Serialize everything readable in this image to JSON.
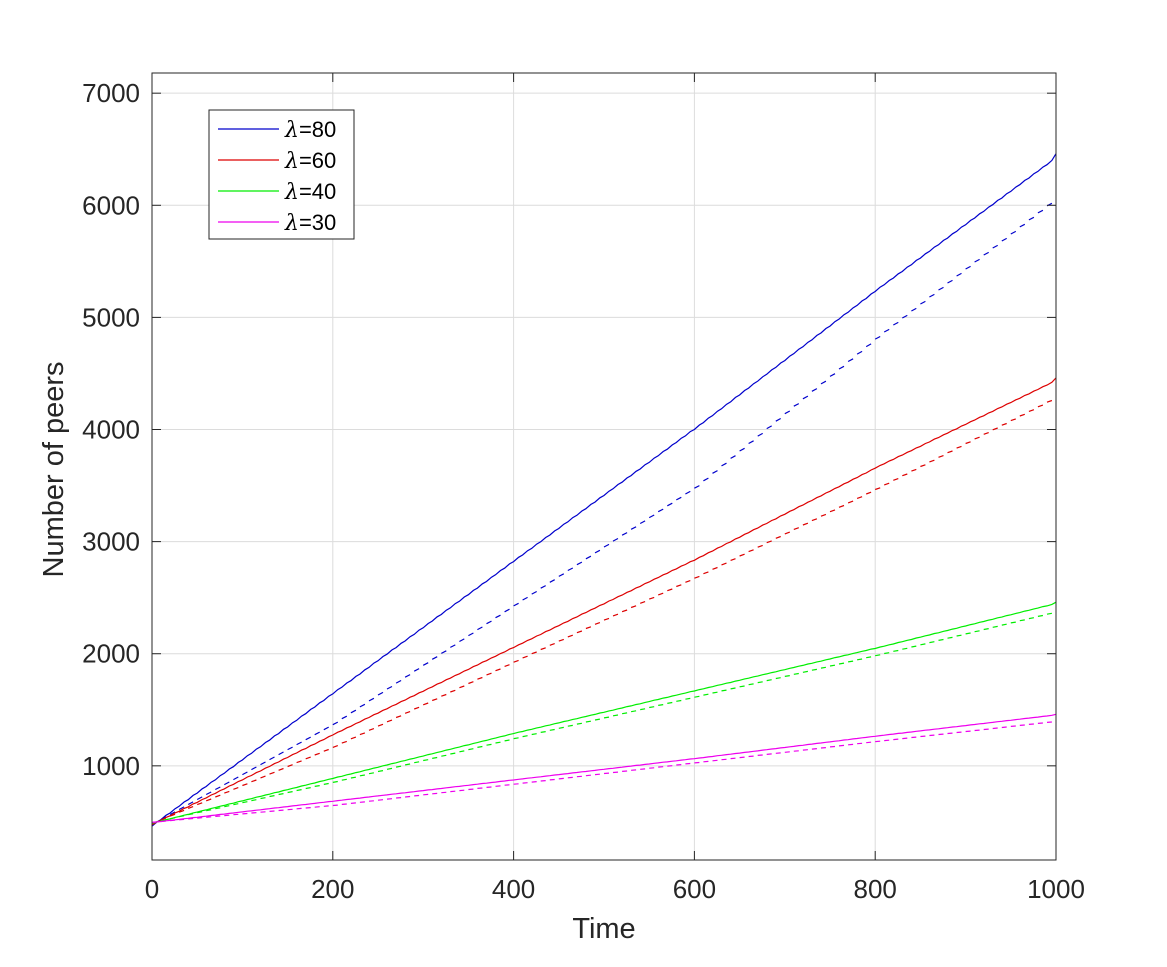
{
  "chart_data": {
    "type": "line",
    "title": "",
    "xlabel": "Time",
    "ylabel": "Number of peers",
    "xlim": [
      0,
      1000
    ],
    "ylim": [
      160,
      7180
    ],
    "xticks": [
      0,
      200,
      400,
      600,
      800,
      1000
    ],
    "xtick_labels": [
      "0",
      "200",
      "400",
      "600",
      "800",
      "1000"
    ],
    "yticks": [
      1000,
      2000,
      3000,
      4000,
      5000,
      6000,
      7000
    ],
    "ytick_labels": [
      "1000",
      "2000",
      "3000",
      "4000",
      "5000",
      "6000",
      "7000"
    ],
    "grid": true,
    "legend_position": "top-left",
    "series": [
      {
        "name": "80",
        "color": "#0000cc",
        "style": "sawtooth",
        "x": [
          0,
          200,
          400,
          600,
          800,
          1000
        ],
        "upper": [
          500,
          1680,
          2860,
          4040,
          5270,
          6460
        ],
        "lower": [
          500,
          1390,
          2450,
          3500,
          4830,
          6080
        ]
      },
      {
        "name": "60",
        "color": "#dd0000",
        "style": "sawtooth",
        "x": [
          0,
          200,
          400,
          600,
          800,
          1000
        ],
        "upper": [
          500,
          1300,
          2080,
          2860,
          3680,
          4460
        ],
        "lower": [
          500,
          1180,
          1940,
          2690,
          3480,
          4300
        ]
      },
      {
        "name": "40",
        "color": "#00ee00",
        "style": "sawtooth",
        "x": [
          0,
          200,
          400,
          600,
          800,
          1000
        ],
        "upper": [
          500,
          900,
          1300,
          1680,
          2060,
          2460
        ],
        "lower": [
          500,
          860,
          1250,
          1620,
          1990,
          2380
        ]
      },
      {
        "name": "30",
        "color": "#ee00ee",
        "style": "sawtooth",
        "x": [
          0,
          200,
          400,
          600,
          800,
          1000
        ],
        "upper": [
          500,
          690,
          880,
          1070,
          1270,
          1460
        ],
        "lower": [
          500,
          650,
          840,
          1030,
          1220,
          1400
        ]
      }
    ],
    "legend_prefix": "λ="
  }
}
